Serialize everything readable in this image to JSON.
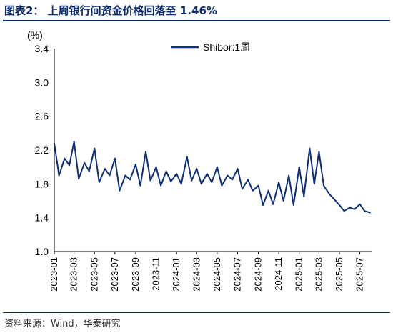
{
  "figure": {
    "title": "图表2：  上周银行间资金价格回落至 1.46%",
    "source": "资料来源：Wind，华泰研究"
  },
  "chart_data": {
    "type": "line",
    "ylabel": "(%)",
    "ylim": [
      1.0,
      3.4
    ],
    "yticks": [
      "3.4",
      "3.0",
      "2.6",
      "2.2",
      "1.8",
      "1.4",
      "1.0"
    ],
    "xticks": [
      "2023-01",
      "2023-03",
      "2023-05",
      "2023-07",
      "2023-09",
      "2023-11",
      "2024-01",
      "2024-03",
      "2024-05",
      "2024-07",
      "2024-09",
      "2024-11",
      "2025-01",
      "2025-03",
      "2025-05",
      "2025-07"
    ],
    "legend_position": "top-center",
    "color": "#0d2f7a",
    "series": [
      {
        "name": "Shibor:1周",
        "x": [
          "2023-01-01",
          "2023-01-15",
          "2023-02-01",
          "2023-02-15",
          "2023-03-01",
          "2023-03-15",
          "2023-04-01",
          "2023-04-15",
          "2023-05-01",
          "2023-05-15",
          "2023-06-01",
          "2023-06-15",
          "2023-07-01",
          "2023-07-15",
          "2023-08-01",
          "2023-08-15",
          "2023-09-01",
          "2023-09-15",
          "2023-10-01",
          "2023-10-15",
          "2023-11-01",
          "2023-11-15",
          "2023-12-01",
          "2023-12-15",
          "2024-01-01",
          "2024-01-15",
          "2024-02-01",
          "2024-02-15",
          "2024-03-01",
          "2024-03-15",
          "2024-04-01",
          "2024-04-15",
          "2024-05-01",
          "2024-05-15",
          "2024-06-01",
          "2024-06-15",
          "2024-07-01",
          "2024-07-15",
          "2024-08-01",
          "2024-08-15",
          "2024-09-01",
          "2024-09-15",
          "2024-10-01",
          "2024-10-15",
          "2024-11-01",
          "2024-11-15",
          "2024-12-01",
          "2024-12-15",
          "2025-01-01",
          "2025-01-15",
          "2025-02-01",
          "2025-02-15",
          "2025-03-01",
          "2025-03-15",
          "2025-04-01",
          "2025-04-15",
          "2025-05-01",
          "2025-05-15",
          "2025-06-01",
          "2025-06-15",
          "2025-07-01",
          "2025-07-15",
          "2025-08-01"
        ],
        "values": [
          2.28,
          1.9,
          2.1,
          2.02,
          2.3,
          1.86,
          2.05,
          1.95,
          2.22,
          1.82,
          1.98,
          1.9,
          2.1,
          1.72,
          1.9,
          1.85,
          2.03,
          1.78,
          2.18,
          1.84,
          2.0,
          1.78,
          1.95,
          1.83,
          1.92,
          1.8,
          2.12,
          1.84,
          1.98,
          1.8,
          1.92,
          1.82,
          2.0,
          1.78,
          1.9,
          1.85,
          1.98,
          1.74,
          1.85,
          1.72,
          1.78,
          1.55,
          1.72,
          1.56,
          1.82,
          1.6,
          1.9,
          1.55,
          2.0,
          1.65,
          2.22,
          1.8,
          2.18,
          1.78,
          1.68,
          1.62,
          1.55,
          1.48,
          1.52,
          1.5,
          1.56,
          1.48,
          1.46
        ]
      }
    ]
  }
}
